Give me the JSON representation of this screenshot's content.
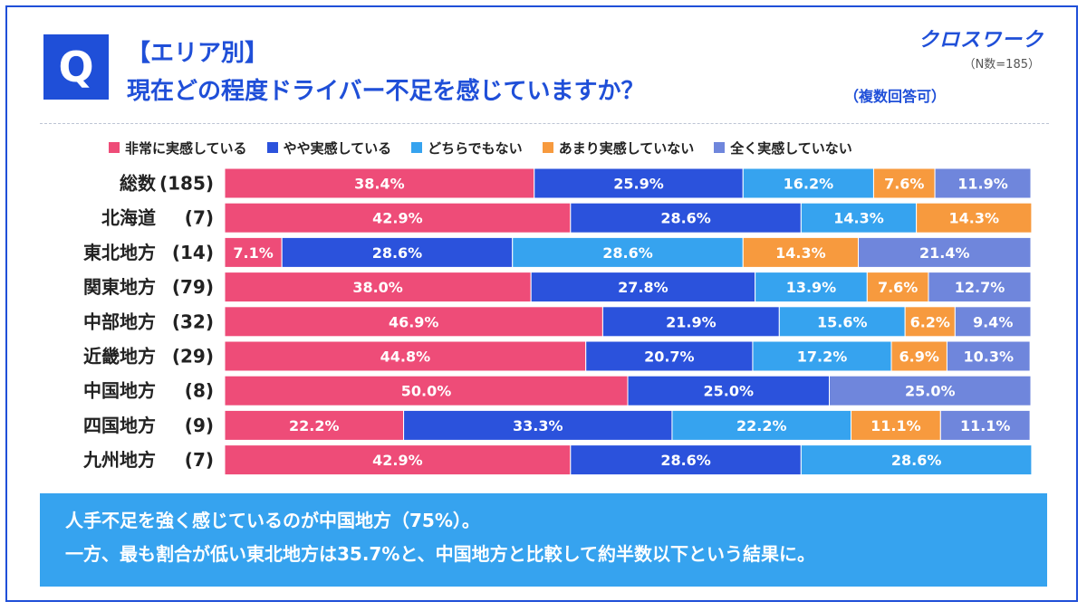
{
  "header": {
    "q_badge": "Q",
    "title_line1": "【エリア別】",
    "title_line2": "現在どの程度ドライバー不足を感じていますか？",
    "multi_answer_note": "（複数回答可）",
    "brand": "クロスワーク",
    "sample_note": "（N数=185）"
  },
  "colors": {
    "strong": "#ee4c78",
    "somewhat": "#2b52dc",
    "neutral": "#36a3ef",
    "little": "#f79a3e",
    "none": "#6f86dc",
    "accent": "#1f4fd8",
    "note_bg": "#36a3ef"
  },
  "chart_data": {
    "type": "bar",
    "orientation": "horizontal",
    "stacked": true,
    "percent": true,
    "xlim": [
      0,
      100
    ],
    "legend_position": "top",
    "categories": [
      {
        "name": "総数",
        "n": "(185)"
      },
      {
        "name": "北海道",
        "n": "(7)"
      },
      {
        "name": "東北地方",
        "n": "(14)"
      },
      {
        "name": "関東地方",
        "n": "(79)"
      },
      {
        "name": "中部地方",
        "n": "(32)"
      },
      {
        "name": "近畿地方",
        "n": "(29)"
      },
      {
        "name": "中国地方",
        "n": "(8)"
      },
      {
        "name": "四国地方",
        "n": "(9)"
      },
      {
        "name": "九州地方",
        "n": "(7)"
      }
    ],
    "series": [
      {
        "name": "非常に実感している",
        "color_key": "strong",
        "values": [
          38.4,
          42.9,
          7.1,
          38.0,
          46.9,
          44.8,
          50.0,
          22.2,
          42.9
        ]
      },
      {
        "name": "やや実感している",
        "color_key": "somewhat",
        "values": [
          25.9,
          28.6,
          28.6,
          27.8,
          21.9,
          20.7,
          25.0,
          33.3,
          28.6
        ]
      },
      {
        "name": "どちらでもない",
        "color_key": "neutral",
        "values": [
          16.2,
          14.3,
          28.6,
          13.9,
          15.6,
          17.2,
          0,
          22.2,
          28.6
        ]
      },
      {
        "name": "あまり実感していない",
        "color_key": "little",
        "values": [
          7.6,
          14.3,
          14.3,
          7.6,
          6.2,
          6.9,
          0,
          11.1,
          0
        ]
      },
      {
        "name": "全く実感していない",
        "color_key": "none",
        "values": [
          11.9,
          0,
          21.4,
          12.7,
          9.4,
          10.3,
          25.0,
          11.1,
          0
        ]
      }
    ]
  },
  "note": {
    "line1": "人手不足を強く感じているのが中国地方（75%）。",
    "line2": "一方、最も割合が低い東北地方は35.7%と、中国地方と比較して約半数以下という結果に。"
  }
}
